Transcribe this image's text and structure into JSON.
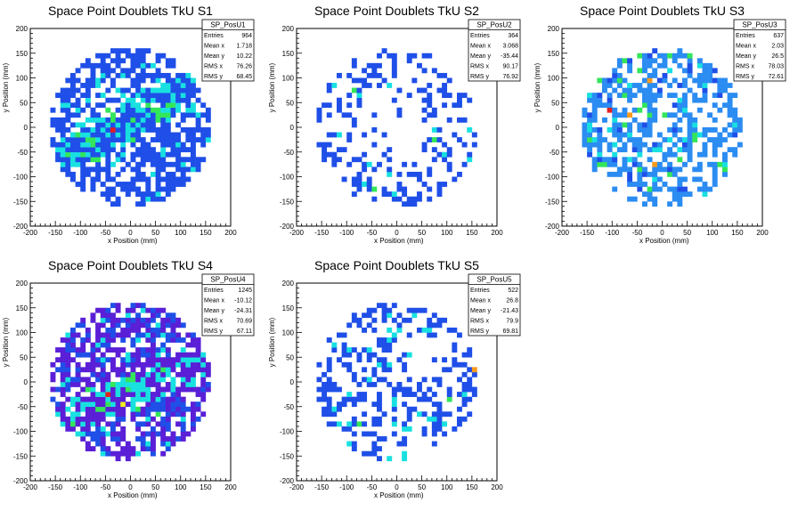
{
  "chart_data": [
    {
      "type": "heatmap",
      "title": "Space Point Doublets TkU S1",
      "xlabel": "x Position (mm)",
      "ylabel": "y Position (mm)",
      "xlim": [
        -200,
        200
      ],
      "ylim": [
        -200,
        200
      ],
      "xticks": [
        "-200",
        "-150",
        "-100",
        "-50",
        "0",
        "50",
        "100",
        "150",
        "200"
      ],
      "yticks": [
        "-200",
        "-150",
        "-100",
        "-50",
        "0",
        "50",
        "100",
        "150",
        "200"
      ],
      "bin_width_mm": 10,
      "palette": "blue-cyan-green-yellow-red",
      "stats": {
        "name": "SP_PosU1",
        "rows": [
          {
            "label": "Entries",
            "value": "964"
          },
          {
            "label": "Mean x",
            "value": "1.718"
          },
          {
            "label": "Mean y",
            "value": "10.22"
          },
          {
            "label": "RMS x",
            "value": "76.26"
          },
          {
            "label": "RMS y",
            "value": "68.45"
          }
        ]
      },
      "hot_spots": [
        {
          "x": -30,
          "y": -5,
          "level": "red"
        },
        {
          "x": 60,
          "y": 30,
          "level": "green"
        },
        {
          "x": 80,
          "y": 45,
          "level": "green"
        },
        {
          "x": -70,
          "y": -35,
          "level": "green"
        }
      ]
    },
    {
      "type": "heatmap",
      "title": "Space Point Doublets TkU S2",
      "xlabel": "x Position (mm)",
      "ylabel": "y Position (mm)",
      "xlim": [
        -200,
        200
      ],
      "ylim": [
        -200,
        200
      ],
      "xticks": [
        "-200",
        "-150",
        "-100",
        "-50",
        "0",
        "50",
        "100",
        "150",
        "200"
      ],
      "yticks": [
        "-200",
        "-150",
        "-100",
        "-50",
        "0",
        "50",
        "100",
        "150",
        "200"
      ],
      "bin_width_mm": 10,
      "palette": "blue-cyan-green-yellow-red",
      "stats": {
        "name": "SP_PosU2",
        "rows": [
          {
            "label": "Entries",
            "value": "364"
          },
          {
            "label": "Mean x",
            "value": "3.068"
          },
          {
            "label": "Mean y",
            "value": "-35.44"
          },
          {
            "label": "RMS x",
            "value": "90.17"
          },
          {
            "label": "RMS y",
            "value": "76.92"
          }
        ]
      },
      "hot_spots": [
        {
          "x": -80,
          "y": 75,
          "level": "green"
        },
        {
          "x": 80,
          "y": -20,
          "level": "green"
        },
        {
          "x": -40,
          "y": -120,
          "level": "green"
        }
      ]
    },
    {
      "type": "heatmap",
      "title": "Space Point Doublets TkU S3",
      "xlabel": "x Position (mm)",
      "ylabel": "y Position (mm)",
      "xlim": [
        -200,
        200
      ],
      "ylim": [
        -200,
        200
      ],
      "xticks": [
        "-200",
        "-150",
        "-100",
        "-50",
        "0",
        "50",
        "100",
        "150",
        "200"
      ],
      "yticks": [
        "-200",
        "-150",
        "-100",
        "-50",
        "0",
        "50",
        "100",
        "150",
        "200"
      ],
      "bin_width_mm": 10,
      "palette": "blue-cyan-green-yellow-red",
      "stats": {
        "name": "SP_PosU3",
        "rows": [
          {
            "label": "Entries",
            "value": "637"
          },
          {
            "label": "Mean x",
            "value": "2.03"
          },
          {
            "label": "Mean y",
            "value": "26.5"
          },
          {
            "label": "RMS x",
            "value": "78.03"
          },
          {
            "label": "RMS y",
            "value": "72.61"
          }
        ]
      },
      "hot_spots": [
        {
          "x": -100,
          "y": 35,
          "level": "red"
        },
        {
          "x": -20,
          "y": 100,
          "level": "orange"
        },
        {
          "x": -60,
          "y": 25,
          "level": "orange"
        },
        {
          "x": -10,
          "y": -70,
          "level": "orange"
        }
      ]
    },
    {
      "type": "heatmap",
      "title": "Space Point Doublets TkU S4",
      "xlabel": "x Position (mm)",
      "ylabel": "y Position (mm)",
      "xlim": [
        -200,
        200
      ],
      "ylim": [
        -200,
        200
      ],
      "xticks": [
        "-200",
        "-150",
        "-100",
        "-50",
        "0",
        "50",
        "100",
        "150",
        "200"
      ],
      "yticks": [
        "-200",
        "-150",
        "-100",
        "-50",
        "0",
        "50",
        "100",
        "150",
        "200"
      ],
      "bin_width_mm": 10,
      "palette": "violet-blue-cyan-green-yellow-red",
      "stats": {
        "name": "SP_PosU4",
        "rows": [
          {
            "label": "Entries",
            "value": "1245"
          },
          {
            "label": "Mean x",
            "value": "-10.12"
          },
          {
            "label": "Mean y",
            "value": "-24.31"
          },
          {
            "label": "RMS x",
            "value": "70.69"
          },
          {
            "label": "RMS y",
            "value": "67.11"
          }
        ]
      },
      "hot_spots": [
        {
          "x": -40,
          "y": -25,
          "level": "red"
        },
        {
          "x": -10,
          "y": -45,
          "level": "yellow"
        },
        {
          "x": 20,
          "y": -55,
          "level": "green"
        },
        {
          "x": 60,
          "y": -60,
          "level": "green"
        },
        {
          "x": -80,
          "y": -10,
          "level": "green"
        }
      ]
    },
    {
      "type": "heatmap",
      "title": "Space Point Doublets TkU S5",
      "xlabel": "x Position (mm)",
      "ylabel": "y Position (mm)",
      "xlim": [
        -200,
        200
      ],
      "ylim": [
        -200,
        200
      ],
      "xticks": [
        "-200",
        "-150",
        "-100",
        "-50",
        "0",
        "50",
        "100",
        "150",
        "200"
      ],
      "yticks": [
        "-200",
        "-150",
        "-100",
        "-50",
        "0",
        "50",
        "100",
        "150",
        "200"
      ],
      "bin_width_mm": 10,
      "palette": "blue-cyan-green-yellow-red",
      "stats": {
        "name": "SP_PosU5",
        "rows": [
          {
            "label": "Entries",
            "value": "522"
          },
          {
            "label": "Mean x",
            "value": "26.8"
          },
          {
            "label": "Mean y",
            "value": "-21.43"
          },
          {
            "label": "RMS x",
            "value": "79.9"
          },
          {
            "label": "RMS y",
            "value": "69.81"
          }
        ]
      },
      "hot_spots": [
        {
          "x": 160,
          "y": 25,
          "level": "orange"
        },
        {
          "x": 110,
          "y": -30,
          "level": "green"
        },
        {
          "x": -70,
          "y": -80,
          "level": "green"
        }
      ]
    }
  ]
}
